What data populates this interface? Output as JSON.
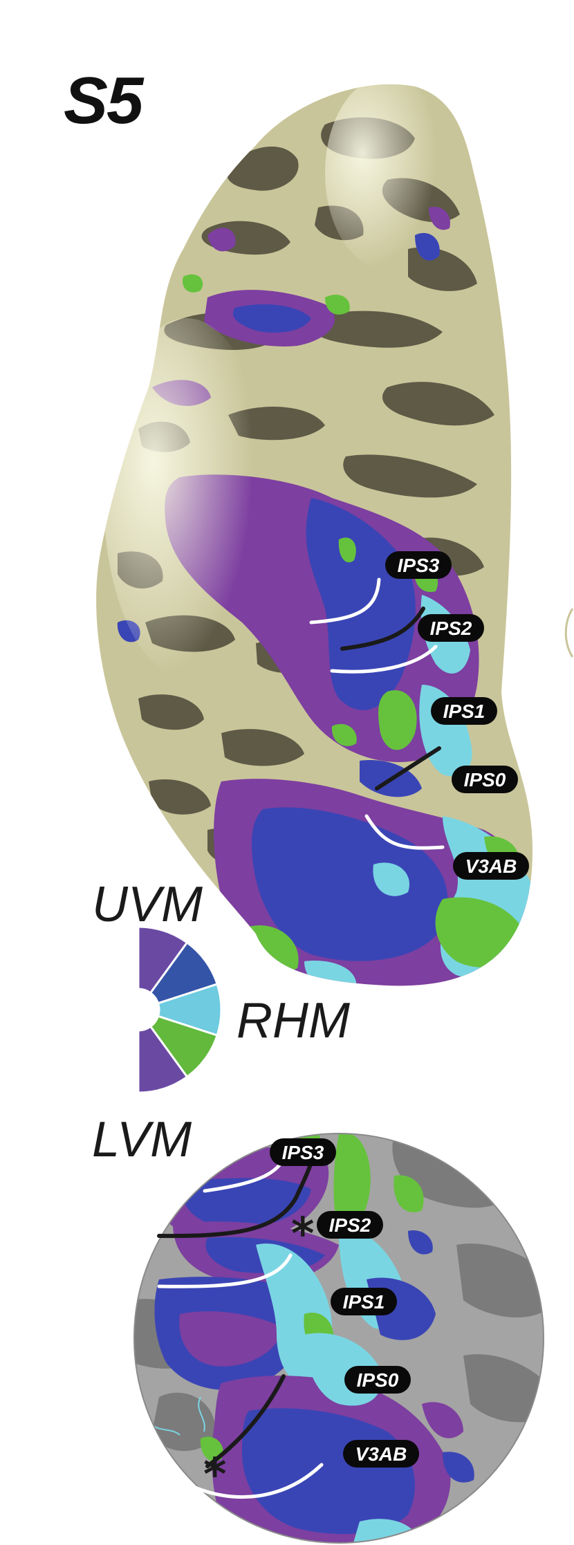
{
  "subject_label": "S5",
  "legend": {
    "upper": "UVM",
    "right": "RHM",
    "lower": "LVM",
    "wedge_colors": [
      "#6a49a3",
      "#3454a8",
      "#6ecbe0",
      "#62b93c",
      "#6a49a3"
    ]
  },
  "surface_3d": {
    "roi_labels": [
      "IPS3",
      "IPS2",
      "IPS1",
      "IPS0",
      "V3AB"
    ]
  },
  "flat_map": {
    "roi_labels": [
      "IPS3",
      "IPS2",
      "IPS1",
      "IPS0",
      "V3AB"
    ]
  },
  "colors": {
    "cortex_light": "#c9c59a",
    "cortex_dark": "#5e5a46",
    "purple": "#7d3fa0",
    "blue": "#3a45b5",
    "cyan": "#7ad5e3",
    "green": "#66c23d",
    "flat_gray_light": "#a4a4a4",
    "flat_gray_dark": "#7b7b7b"
  }
}
